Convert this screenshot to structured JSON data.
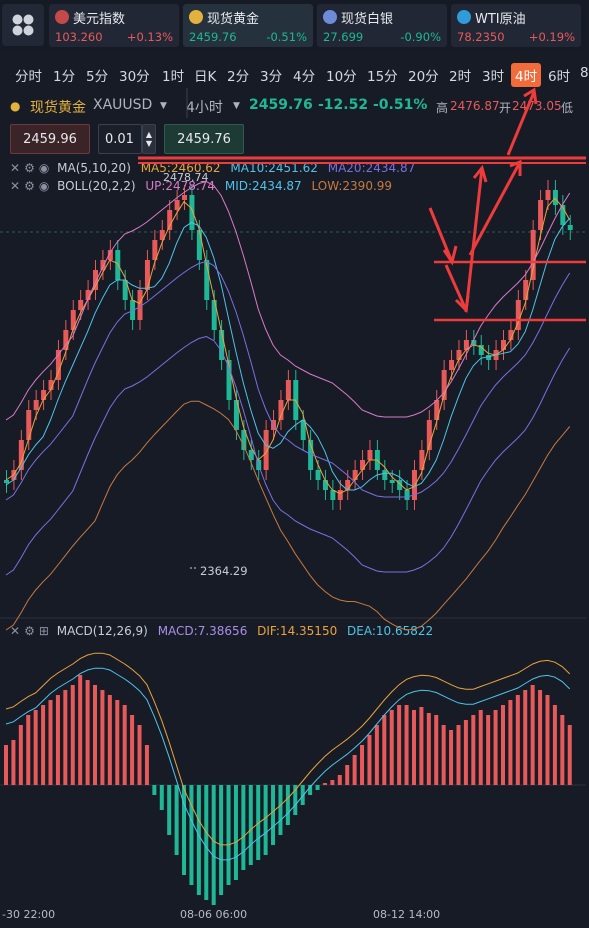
{
  "tickers": [
    {
      "name": "美元指数",
      "price": "103.260",
      "change": "+0.13%",
      "icon": "us-flag-icon",
      "icon_color": "#c44a4a",
      "dir": "up"
    },
    {
      "name": "现货黄金",
      "price": "2459.76",
      "change": "-0.51%",
      "icon": "gold-coin-icon",
      "icon_color": "#e3b23c",
      "dir": "down"
    },
    {
      "name": "现货白银",
      "price": "27.699",
      "change": "-0.90%",
      "icon": "silver-icon",
      "icon_color": "#6e8bd8",
      "dir": "down"
    },
    {
      "name": "WTI原油",
      "price": "78.2350",
      "change": "+0.19%",
      "icon": "oil-icon",
      "icon_color": "#2f9bd8",
      "dir": "up"
    }
  ],
  "timeframes": [
    "分时",
    "1分",
    "5分",
    "30分",
    "1时",
    "日K",
    "2分",
    "3分",
    "4分",
    "10分",
    "15分",
    "20分",
    "2时",
    "3时",
    "4时",
    "6时",
    "8"
  ],
  "selected_timeframe": "4时",
  "symbol": {
    "name": "现货黄金",
    "code": "XAUUSD",
    "period": "4小时",
    "price": "2459.76",
    "change": "-12.52",
    "pct": "-0.51%",
    "high_label": "高",
    "high": "2476.87",
    "open_label": "开",
    "open": "2473.05",
    "low_label": "低"
  },
  "order": {
    "sell_price": "2459.96",
    "qty": "0.01",
    "buy_price": "2459.76"
  },
  "ma": {
    "label": "MA(5,10,20)",
    "ma5": "MA5:2460.62",
    "ma10": "MA10:2451.62",
    "ma20": "MA20:2434.87"
  },
  "boll": {
    "label": "BOLL(20,2,2)",
    "up": "UP:2478.74",
    "mid": "MID:2434.87",
    "low": "LOW:2390.99"
  },
  "macd": {
    "label": "MACD(12,26,9)",
    "macd": "MACD:7.38656",
    "dif": "DIF:14.35150",
    "dea": "DEA:10.65822"
  },
  "chart_labels": {
    "low_marker": "2364.29",
    "high_marker": "2478.74"
  },
  "x_labels": [
    "-30 22:00",
    "08-06 06:00",
    "08-12 14:00"
  ],
  "colors": {
    "up": "#e85a5a",
    "down": "#1fb896",
    "ma5": "#e8a33c",
    "ma10": "#4fc3e8",
    "ma20": "#7b6fe0",
    "boll_up": "#d87ac8",
    "boll_low": "#c67a40",
    "arrow": "#ee3b3b"
  }
}
